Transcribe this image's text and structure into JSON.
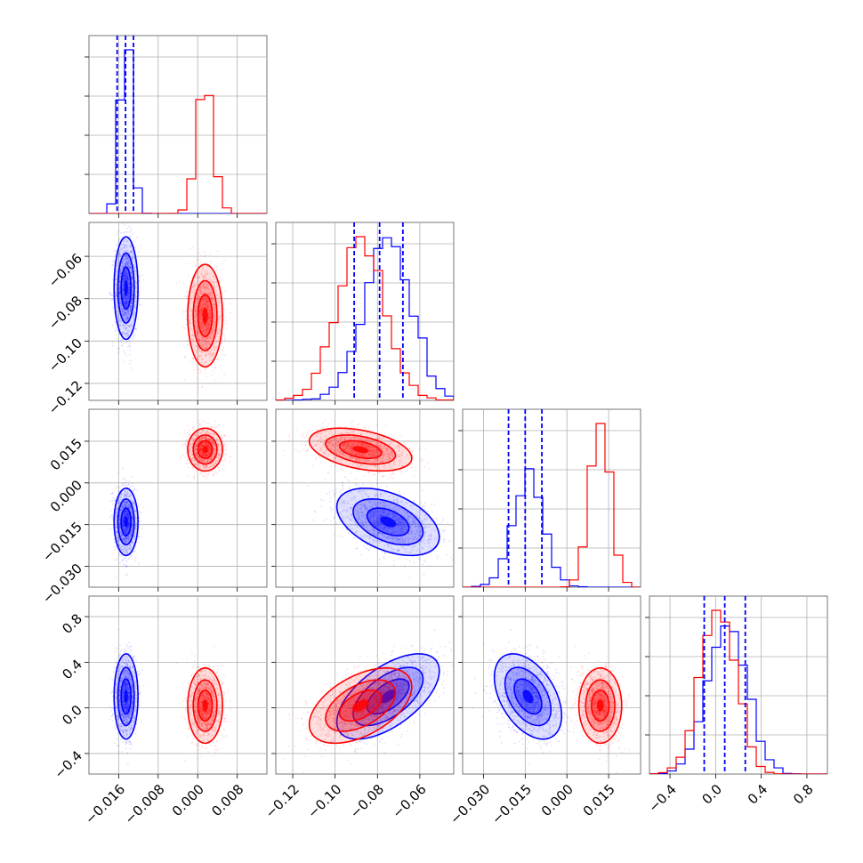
{
  "chart_data": {
    "type": "corner",
    "grid": true,
    "colors": {
      "blue": "#0000ff",
      "red": "#ff0000"
    },
    "params": [
      {
        "range": [
          -0.022,
          0.014
        ],
        "ticks": [
          -0.016,
          -0.008,
          0.0,
          0.008
        ],
        "tick_labels": [
          "−0.016",
          "−0.008",
          "0.000",
          "0.008"
        ]
      },
      {
        "range": [
          -0.128,
          -0.044
        ],
        "ticks": [
          -0.12,
          -0.1,
          -0.08,
          -0.06
        ],
        "tick_labels": [
          "−0.12",
          "−0.10",
          "−0.08",
          "−0.06"
        ]
      },
      {
        "range": [
          -0.0375,
          0.0265
        ],
        "ticks": [
          -0.03,
          -0.015,
          0.0,
          0.015
        ],
        "tick_labels": [
          "−0.030",
          "−0.015",
          "0.000",
          "0.015"
        ]
      },
      {
        "range": [
          -0.58,
          0.98
        ],
        "ticks": [
          -0.4,
          0.0,
          0.4,
          0.8
        ],
        "tick_labels": [
          "−0.4",
          "0.0",
          "0.4",
          "0.8"
        ]
      }
    ],
    "series": [
      {
        "name": "",
        "color": "#0000ff",
        "mean": [
          -0.0145,
          -0.075,
          -0.014,
          0.1
        ],
        "std": [
          0.0011,
          0.011,
          0.0055,
          0.17
        ],
        "corr": [
          [
            1,
            0,
            0,
            0
          ],
          [
            0,
            1,
            -0.45,
            0.6
          ],
          [
            0,
            -0.45,
            1,
            -0.45
          ],
          [
            0,
            0.6,
            -0.45,
            1
          ]
        ],
        "quantiles": [
          [
            -0.0163,
            -0.0146,
            -0.013
          ],
          [
            -0.091,
            -0.079,
            -0.068
          ],
          [
            -0.021,
            -0.015,
            -0.009
          ],
          [
            -0.1,
            0.08,
            0.26
          ]
        ]
      },
      {
        "name": "",
        "color": "#ff0000",
        "mean": [
          0.0015,
          -0.088,
          0.012,
          0.02
        ],
        "std": [
          0.0016,
          0.011,
          0.0035,
          0.15
        ],
        "corr": [
          [
            1,
            0,
            0,
            0
          ],
          [
            0,
            1,
            -0.4,
            0.5
          ],
          [
            0,
            -0.4,
            1,
            0
          ],
          [
            0,
            0.5,
            0,
            1
          ]
        ],
        "quantiles": []
      }
    ]
  }
}
